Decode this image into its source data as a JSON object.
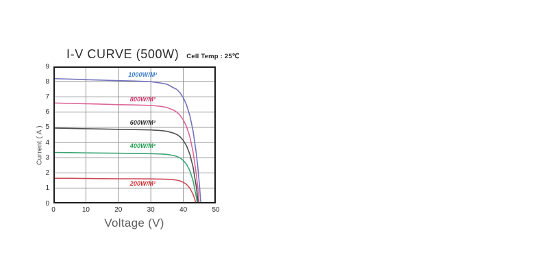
{
  "page": {
    "background": "#ffffff"
  },
  "chart_data": {
    "type": "line",
    "title": "I-V CURVE (500W)",
    "subtitle": "Cell Temp : 25℃",
    "xlabel": "Voltage (V)",
    "ylabel": "Current ( A )",
    "xlim": [
      0,
      50
    ],
    "ylim": [
      0,
      9
    ],
    "x_ticks": [
      0,
      10,
      20,
      30,
      40,
      50
    ],
    "y_ticks": [
      0,
      1,
      2,
      3,
      4,
      5,
      6,
      7,
      8,
      9
    ],
    "grid": true,
    "legend_position": "inline-curve-labels",
    "frame_color": "#1c1c1c",
    "grid_color": "#929292",
    "series": [
      {
        "name": "1000W/M²",
        "irradiance_w_per_m2": 1000,
        "line_color": "#7173bd",
        "label_color": "#3d7dc8",
        "label_anchor": {
          "v": 27.5,
          "a": 8.45
        },
        "isc_a": 8.2,
        "voc_v": 45.4,
        "points": [
          [
            0,
            8.2
          ],
          [
            5,
            8.17
          ],
          [
            10,
            8.13
          ],
          [
            15,
            8.1
          ],
          [
            20,
            8.07
          ],
          [
            25,
            8.04
          ],
          [
            30,
            8.0
          ],
          [
            33,
            7.91
          ],
          [
            35,
            7.83
          ],
          [
            37,
            7.6
          ],
          [
            38,
            7.49
          ],
          [
            39,
            7.27
          ],
          [
            40,
            6.95
          ],
          [
            41,
            6.47
          ],
          [
            42,
            5.78
          ],
          [
            43,
            4.78
          ],
          [
            44,
            3.29
          ],
          [
            44.5,
            2.32
          ],
          [
            45,
            1.13
          ],
          [
            45.4,
            0
          ]
        ]
      },
      {
        "name": "800W/M²",
        "irradiance_w_per_m2": 800,
        "line_color": "#dd6699",
        "label_color": "#cc3366",
        "label_anchor": {
          "v": 27.5,
          "a": 6.85
        },
        "isc_a": 6.6,
        "voc_v": 44.9,
        "points": [
          [
            0,
            6.6
          ],
          [
            5,
            6.57
          ],
          [
            10,
            6.55
          ],
          [
            15,
            6.52
          ],
          [
            20,
            6.49
          ],
          [
            25,
            6.47
          ],
          [
            30,
            6.44
          ],
          [
            33,
            6.38
          ],
          [
            35,
            6.3
          ],
          [
            37,
            6.13
          ],
          [
            38,
            6.0
          ],
          [
            39,
            5.79
          ],
          [
            40,
            5.49
          ],
          [
            41,
            5.05
          ],
          [
            42,
            4.39
          ],
          [
            43,
            3.4
          ],
          [
            44,
            1.93
          ],
          [
            44.5,
            0.94
          ],
          [
            44.9,
            0
          ]
        ]
      },
      {
        "name": "600W/M²",
        "irradiance_w_per_m2": 600,
        "line_color": "#4f4f4f",
        "label_color": "#2f2f2f",
        "label_anchor": {
          "v": 27.5,
          "a": 5.3
        },
        "isc_a": 4.95,
        "voc_v": 44.6,
        "points": [
          [
            0,
            4.95
          ],
          [
            5,
            4.93
          ],
          [
            10,
            4.91
          ],
          [
            15,
            4.89
          ],
          [
            20,
            4.87
          ],
          [
            25,
            4.85
          ],
          [
            30,
            4.83
          ],
          [
            33,
            4.79
          ],
          [
            35,
            4.74
          ],
          [
            37,
            4.62
          ],
          [
            38,
            4.53
          ],
          [
            39,
            4.38
          ],
          [
            40,
            4.14
          ],
          [
            41,
            3.79
          ],
          [
            42,
            3.24
          ],
          [
            43,
            2.4
          ],
          [
            44,
            1.1
          ],
          [
            44.6,
            0
          ]
        ]
      },
      {
        "name": "400W/M²",
        "irradiance_w_per_m2": 400,
        "line_color": "#3da573",
        "label_color": "#1f9e4f",
        "label_anchor": {
          "v": 27.5,
          "a": 3.8
        },
        "isc_a": 3.35,
        "voc_v": 44.3,
        "points": [
          [
            0,
            3.35
          ],
          [
            5,
            3.34
          ],
          [
            10,
            3.32
          ],
          [
            15,
            3.31
          ],
          [
            20,
            3.3
          ],
          [
            25,
            3.28
          ],
          [
            30,
            3.27
          ],
          [
            33,
            3.25
          ],
          [
            35,
            3.22
          ],
          [
            37,
            3.15
          ],
          [
            38,
            3.09
          ],
          [
            39,
            2.99
          ],
          [
            40,
            2.82
          ],
          [
            41,
            2.57
          ],
          [
            42,
            2.16
          ],
          [
            43,
            1.5
          ],
          [
            44,
            0.43
          ],
          [
            44.3,
            0
          ]
        ]
      },
      {
        "name": "200W/M²",
        "irradiance_w_per_m2": 200,
        "line_color": "#cc4a55",
        "label_color": "#cc2e2e",
        "label_anchor": {
          "v": 27.5,
          "a": 1.32
        },
        "isc_a": 1.65,
        "voc_v": 43.9,
        "points": [
          [
            0,
            1.65
          ],
          [
            5,
            1.65
          ],
          [
            10,
            1.64
          ],
          [
            15,
            1.63
          ],
          [
            20,
            1.62
          ],
          [
            25,
            1.62
          ],
          [
            30,
            1.61
          ],
          [
            33,
            1.6
          ],
          [
            35,
            1.59
          ],
          [
            37,
            1.56
          ],
          [
            38,
            1.53
          ],
          [
            39,
            1.48
          ],
          [
            40,
            1.39
          ],
          [
            41,
            1.25
          ],
          [
            42,
            1.01
          ],
          [
            43,
            0.6
          ],
          [
            43.5,
            0.3
          ],
          [
            43.9,
            0
          ]
        ]
      }
    ]
  }
}
